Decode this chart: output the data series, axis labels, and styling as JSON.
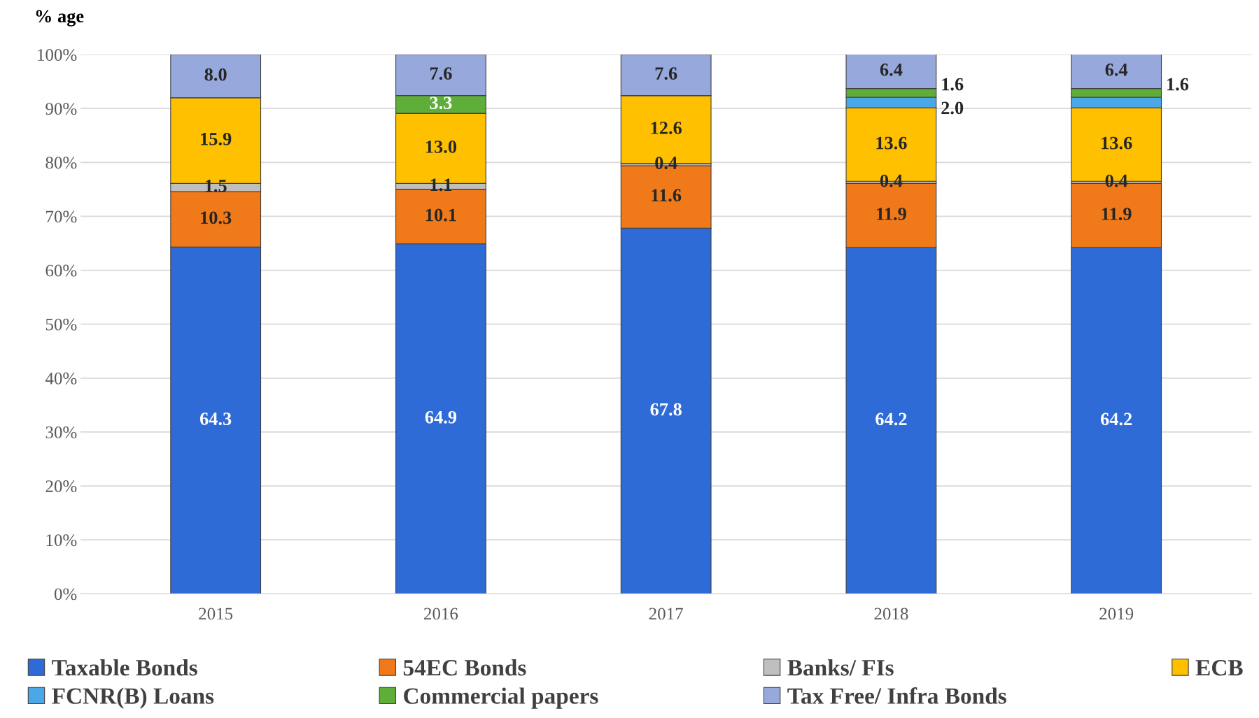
{
  "chart_data": {
    "type": "bar",
    "stacked": true,
    "ylabel": "% age",
    "categories": [
      "2015",
      "2016",
      "2017",
      "2018",
      "2019"
    ],
    "series": [
      {
        "name": "Taxable Bonds",
        "color": "#2e6bd6",
        "values": [
          64.3,
          64.9,
          67.8,
          64.2,
          64.2
        ],
        "value_labels": [
          "64.3",
          "64.9",
          "67.8",
          "64.2",
          "64.2"
        ]
      },
      {
        "name": "54EC Bonds",
        "color": "#f07a1a",
        "values": [
          10.3,
          10.1,
          11.6,
          11.9,
          11.9
        ],
        "value_labels": [
          "10.3",
          "10.1",
          "11.6",
          "11.9",
          "11.9"
        ]
      },
      {
        "name": "Banks/ FIs",
        "color": "#bfbfbf",
        "values": [
          1.5,
          1.1,
          0.4,
          0.4,
          0.4
        ],
        "value_labels": [
          "1.5",
          "1.1",
          "0.4",
          "0.4",
          "0.4"
        ]
      },
      {
        "name": "ECB",
        "color": "#ffc000",
        "values": [
          15.9,
          13.0,
          12.6,
          13.6,
          13.6
        ],
        "value_labels": [
          "15.9",
          "13.0",
          "12.6",
          "13.6",
          "13.6"
        ]
      },
      {
        "name": "FCNR(B) Loans",
        "color": "#4aa8e8",
        "values": [
          0,
          0,
          0,
          2.0,
          2.0
        ],
        "value_labels": [
          null,
          null,
          null,
          "2.0",
          null
        ]
      },
      {
        "name": "Commercial papers",
        "color": "#5fae3a",
        "values": [
          0,
          3.3,
          0,
          1.6,
          1.6
        ],
        "value_labels": [
          null,
          "3.3",
          null,
          "1.6",
          "1.6"
        ]
      },
      {
        "name": "Tax Free/ Infra Bonds",
        "color": "#97a8dc",
        "values": [
          8.0,
          7.6,
          7.6,
          6.4,
          6.4
        ],
        "value_labels": [
          "8.0",
          "7.6",
          "7.6",
          "6.4",
          "6.4"
        ]
      }
    ],
    "ylim": [
      0,
      100
    ],
    "yticks": [
      {
        "value": 0,
        "label": "0%"
      },
      {
        "value": 10,
        "label": "10%"
      },
      {
        "value": 20,
        "label": "20%"
      },
      {
        "value": 30,
        "label": "30%"
      },
      {
        "value": 40,
        "label": "40%"
      },
      {
        "value": 50,
        "label": "50%"
      },
      {
        "value": 60,
        "label": "60%"
      },
      {
        "value": 70,
        "label": "70%"
      },
      {
        "value": 80,
        "label": "80%"
      },
      {
        "value": 90,
        "label": "90%"
      },
      {
        "value": 100,
        "label": "100%"
      }
    ],
    "grid": "y",
    "legend": "bottom"
  }
}
